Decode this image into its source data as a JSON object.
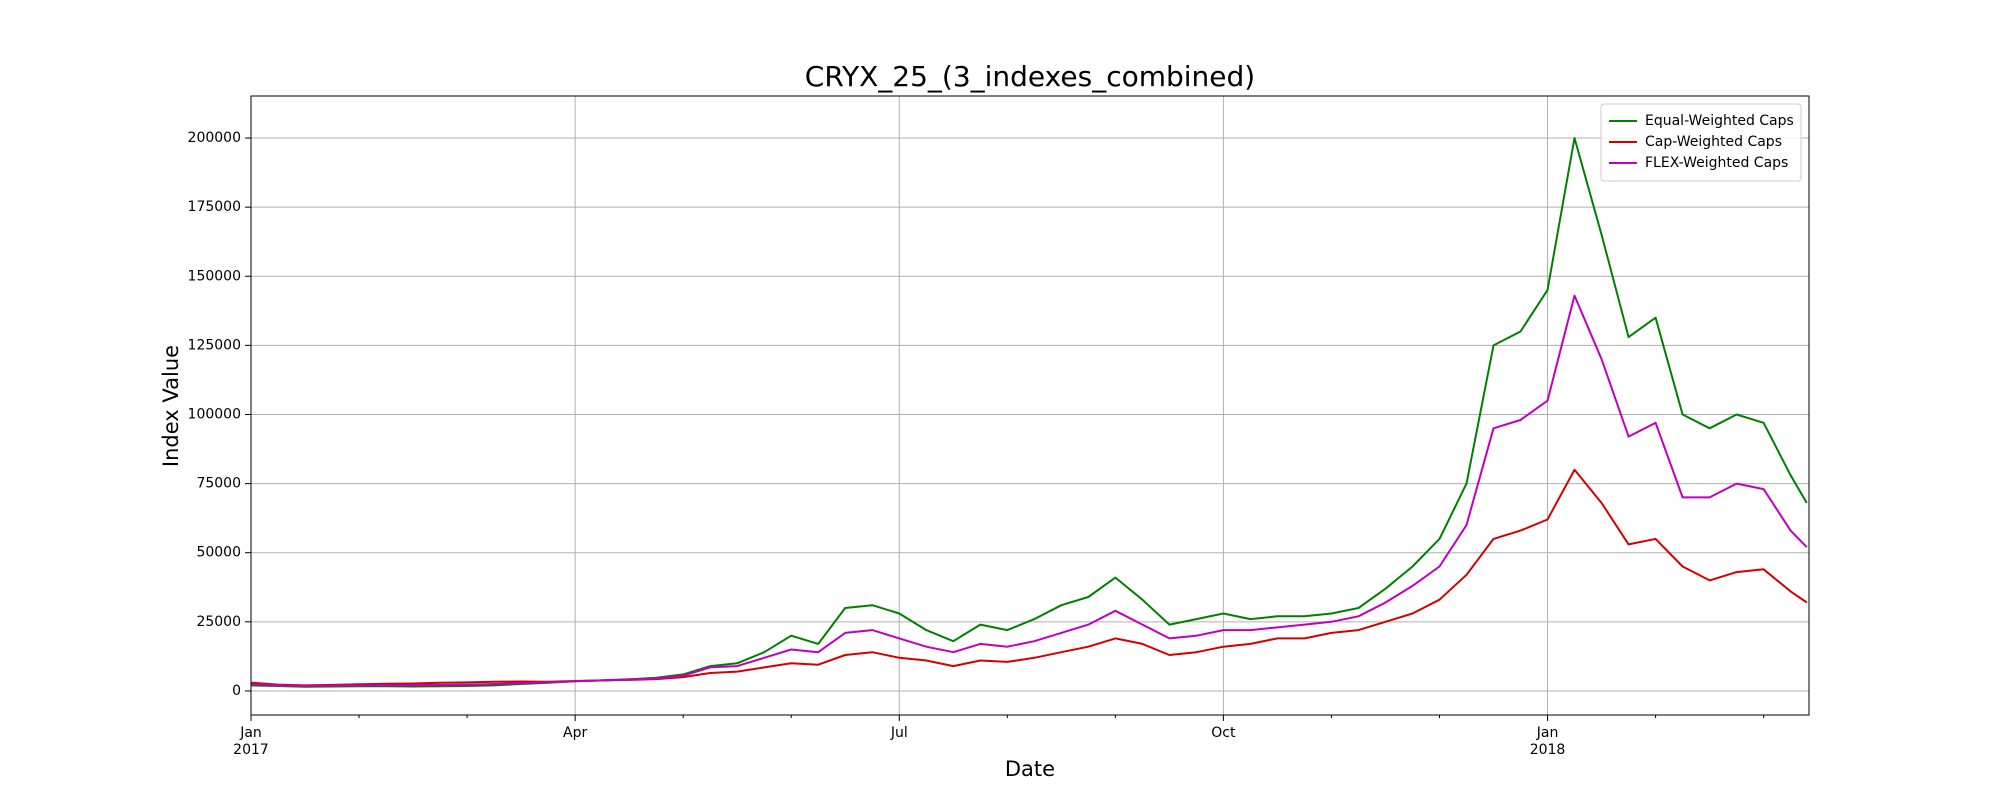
{
  "chart_data": {
    "type": "line",
    "title": "CRYX_25_(3_indexes_combined)",
    "xlabel": "Date",
    "ylabel": "Index Value",
    "x": [
      0,
      0.25,
      0.5,
      0.75,
      1,
      1.25,
      1.5,
      1.75,
      2,
      2.25,
      2.5,
      2.75,
      3,
      3.25,
      3.5,
      3.75,
      4,
      4.25,
      4.5,
      4.75,
      5,
      5.25,
      5.5,
      5.75,
      6,
      6.25,
      6.5,
      6.75,
      7,
      7.25,
      7.5,
      7.75,
      8,
      8.25,
      8.5,
      8.75,
      9,
      9.25,
      9.5,
      9.75,
      10,
      10.25,
      10.5,
      10.75,
      11,
      11.25,
      11.5,
      11.75,
      12,
      12.25,
      12.5,
      12.75,
      13,
      13.25,
      13.5,
      13.75,
      14,
      14.25,
      14.4
    ],
    "series": [
      {
        "name": "Equal-Weighted Caps",
        "color": "#008000",
        "values": [
          2000,
          1800,
          1500,
          1600,
          1700,
          1700,
          1600,
          1700,
          1800,
          2000,
          2500,
          3000,
          3500,
          3800,
          4200,
          4800,
          6000,
          9000,
          10000,
          14000,
          20000,
          17000,
          30000,
          31000,
          28000,
          22000,
          18000,
          24000,
          22000,
          26000,
          31000,
          34000,
          41000,
          33000,
          24000,
          26000,
          28000,
          26000,
          27000,
          27000,
          28000,
          30000,
          37000,
          45000,
          55000,
          75000,
          125000,
          130000,
          145000,
          200000,
          165000,
          128000,
          135000,
          100000,
          95000,
          100000,
          97000,
          78000,
          68000
        ]
      },
      {
        "name": "Cap-Weighted Caps",
        "color": "#d40000",
        "values": [
          3000,
          2300,
          2000,
          2200,
          2400,
          2600,
          2700,
          3000,
          3100,
          3300,
          3400,
          3300,
          3600,
          3800,
          4000,
          4300,
          5000,
          6500,
          7000,
          8500,
          10000,
          9500,
          13000,
          14000,
          12000,
          11000,
          9000,
          11000,
          10500,
          12000,
          14000,
          16000,
          19000,
          17000,
          13000,
          14000,
          16000,
          17000,
          19000,
          19000,
          21000,
          22000,
          25000,
          28000,
          33000,
          42000,
          55000,
          58000,
          62000,
          80000,
          68000,
          53000,
          55000,
          45000,
          40000,
          43000,
          44000,
          36000,
          32000
        ]
      },
      {
        "name": "FLEX-Weighted Caps",
        "color": "#bf00bf",
        "values": [
          2500,
          2000,
          1800,
          1900,
          2000,
          2100,
          2100,
          2200,
          2300,
          2500,
          2800,
          3100,
          3500,
          3800,
          4100,
          4500,
          5500,
          8500,
          9000,
          12000,
          15000,
          14000,
          21000,
          22000,
          19000,
          16000,
          14000,
          17000,
          16000,
          18000,
          21000,
          24000,
          29000,
          24000,
          19000,
          20000,
          22000,
          22000,
          23000,
          24000,
          25000,
          27000,
          32000,
          38000,
          45000,
          60000,
          95000,
          98000,
          105000,
          143000,
          120000,
          92000,
          97000,
          70000,
          70000,
          75000,
          73000,
          58000,
          52000
        ]
      }
    ],
    "xlim": [
      0,
      14.42
    ],
    "xticks": [
      {
        "value": 0,
        "label": "Jan"
      },
      {
        "value": 3,
        "label": "Apr"
      },
      {
        "value": 6,
        "label": "Jul"
      },
      {
        "value": 9,
        "label": "Oct"
      },
      {
        "value": 12,
        "label": "Jan"
      }
    ],
    "x_year_labels": [
      {
        "value": 0,
        "label": "2017"
      },
      {
        "value": 12,
        "label": "2018"
      }
    ],
    "xminorticks": [
      1,
      2,
      4,
      5,
      7,
      8,
      10,
      11,
      13,
      14
    ],
    "ylim": [
      -8700,
      215200
    ],
    "yticks": [
      0,
      25000,
      50000,
      75000,
      100000,
      125000,
      150000,
      175000,
      200000
    ],
    "grid": true,
    "legend": "upper right"
  }
}
